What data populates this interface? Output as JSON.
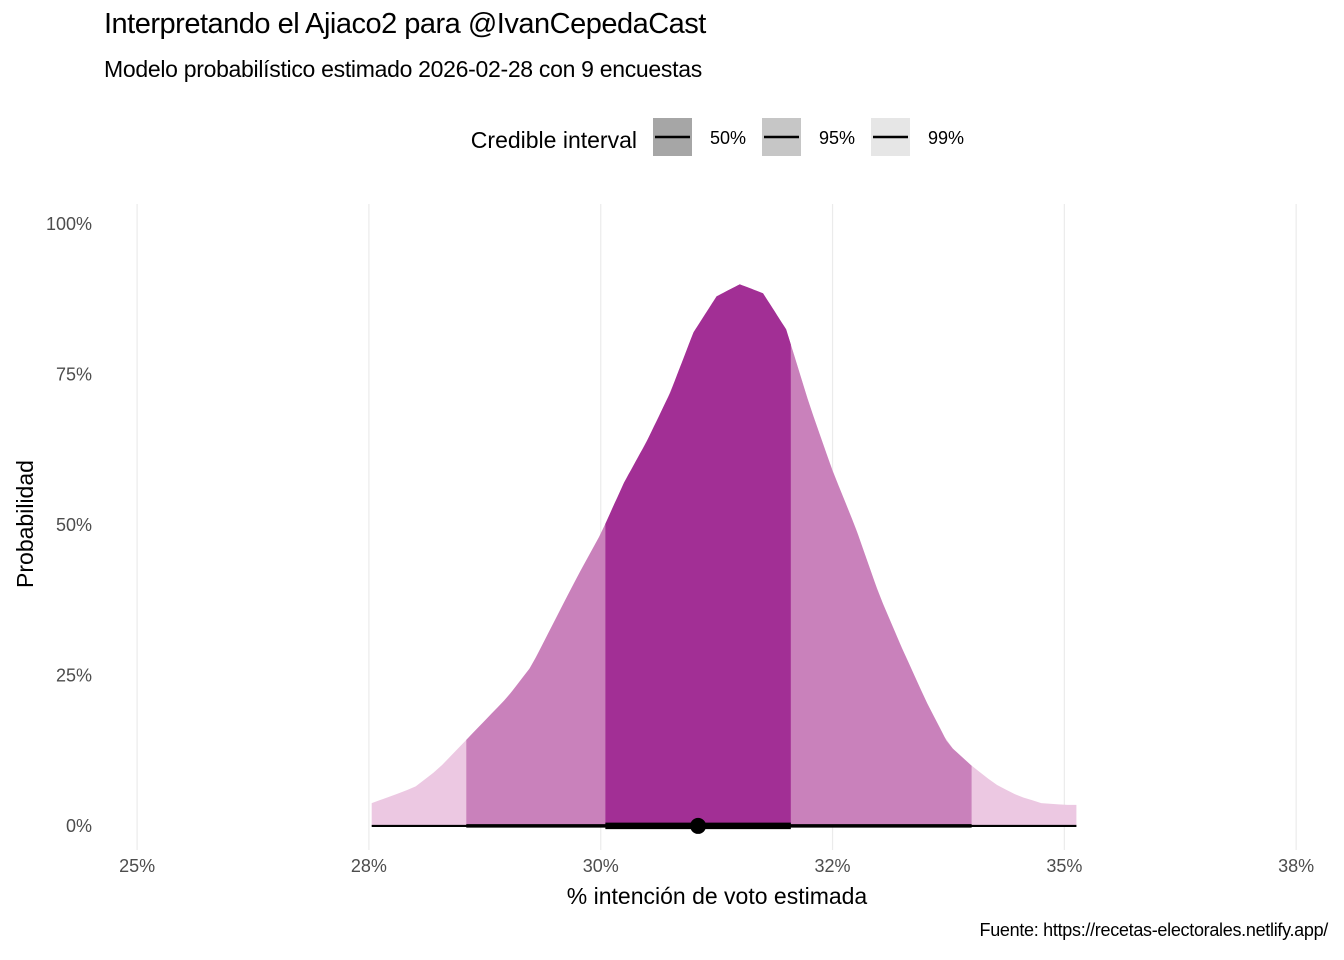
{
  "title": "Interpretando el Ajiaco2 para @IvanCepedaCast",
  "subtitle": "Modelo probabilístico estimado 2026-02-28 con 9 encuestas",
  "caption": "Fuente: https://recetas-electorales.netlify.app/",
  "colors": {
    "fill_50": "#a22f95",
    "fill_95": "#c981bb",
    "fill_99": "#ecc8e2",
    "grid": "#ebebeb",
    "interval_line": "#000000",
    "legend_50": "#a6a6a6",
    "legend_95": "#c6c6c6",
    "legend_99": "#e6e6e6"
  },
  "legend": {
    "title": "Credible interval",
    "items": [
      {
        "label": "50%",
        "level": 50
      },
      {
        "label": "95%",
        "level": 95
      },
      {
        "label": "99%",
        "level": 99
      }
    ]
  },
  "chart_data": {
    "type": "area",
    "xlabel": "% intención de voto estimada",
    "ylabel": "Probabilidad",
    "x_ticks": [
      25,
      27.5,
      30,
      32.5,
      35,
      37.5
    ],
    "x_tick_labels": [
      "25%",
      "28%",
      "30%",
      "32%",
      "35%",
      "38%"
    ],
    "y_ticks": [
      0,
      25,
      50,
      75,
      100
    ],
    "y_tick_labels": [
      "0%",
      "25%",
      "50%",
      "75%",
      "100%"
    ],
    "xlim": [
      24.6,
      37.8
    ],
    "ylim": [
      -4,
      104
    ],
    "grid": "vertical major only",
    "legend_position": "top",
    "density": {
      "x": [
        27.53,
        27.75,
        28.0,
        28.25,
        28.5,
        28.75,
        29.0,
        29.25,
        29.5,
        29.75,
        30.0,
        30.25,
        30.5,
        30.75,
        31.0,
        31.25,
        31.5,
        31.75,
        32.0,
        32.25,
        32.5,
        32.75,
        33.0,
        33.25,
        33.5,
        33.75,
        34.0,
        34.25,
        34.5,
        34.75,
        35.0,
        35.13
      ],
      "y": [
        3.8,
        5.0,
        6.5,
        9.5,
        13.5,
        17.5,
        21.5,
        26.5,
        34.0,
        41.5,
        48.5,
        57.0,
        64.0,
        72.0,
        82.0,
        88.0,
        90.0,
        88.5,
        82.5,
        70.0,
        59.0,
        49.5,
        38.5,
        29.5,
        21.0,
        13.5,
        10.0,
        7.0,
        5.0,
        3.8,
        3.5,
        3.5
      ]
    },
    "point_estimate": 31.05,
    "intervals": [
      {
        "level": 50,
        "low": 30.05,
        "high": 32.05
      },
      {
        "level": 95,
        "low": 28.55,
        "high": 34.0
      },
      {
        "level": 99,
        "low": 27.53,
        "high": 35.13
      }
    ]
  }
}
